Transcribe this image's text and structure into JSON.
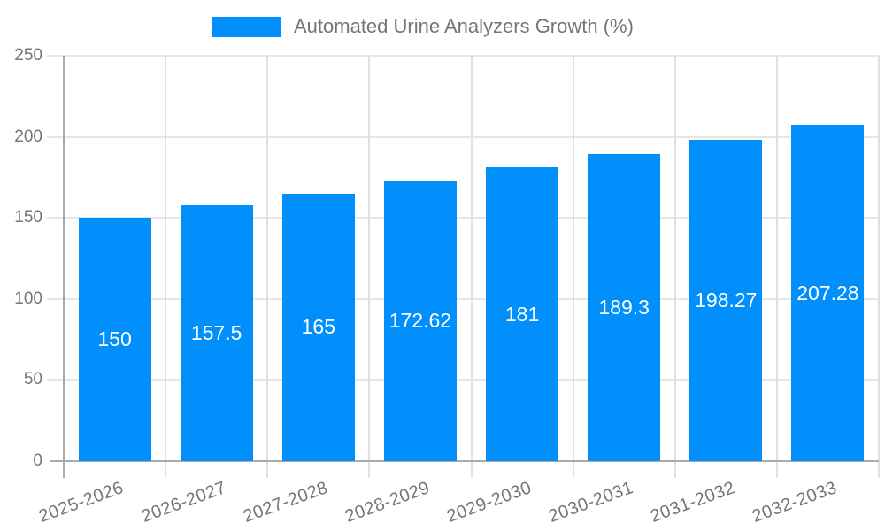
{
  "legend": {
    "label": "Automated Urine Analyzers Growth (%)"
  },
  "chart_data": {
    "type": "bar",
    "title": "Automated Urine Analyzers Growth (%)",
    "xlabel": "",
    "ylabel": "",
    "categories": [
      "2025-2026",
      "2026-2027",
      "2027-2028",
      "2028-2029",
      "2029-2030",
      "2030-2031",
      "2031-2032",
      "2032-2033"
    ],
    "values": [
      150,
      157.5,
      165,
      172.62,
      181,
      189.3,
      198.27,
      207.28
    ],
    "value_labels": [
      "150",
      "157.5",
      "165",
      "172.62",
      "181",
      "189.3",
      "198.27",
      "207.28"
    ],
    "ylim": [
      0,
      250
    ],
    "yticks": [
      0,
      50,
      100,
      150,
      200,
      250
    ],
    "grid": true,
    "legend_position": "top",
    "bar_color": "#008FFB",
    "value_label_color": "#ffffff",
    "axis_text_color": "#757575",
    "grid_color_horizontal": "#e6e6e6",
    "grid_color_vertical": "#e0e0e0",
    "axis_line_color": "#ababab",
    "background_color": "#ffffff"
  }
}
